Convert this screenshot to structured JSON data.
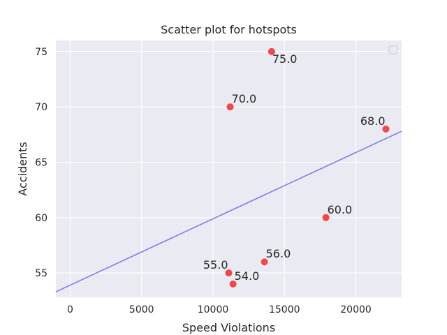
{
  "chart_data": {
    "type": "scatter",
    "title": "Scatter plot for hotspots",
    "xlabel": "Speed Violations",
    "ylabel": "Accidents",
    "xlim": [
      -1000,
      23200
    ],
    "ylim": [
      52.8,
      76
    ],
    "xticks": [
      0,
      5000,
      10000,
      15000,
      20000
    ],
    "yticks": [
      55,
      60,
      65,
      70,
      75
    ],
    "xtick_labels": [
      "0",
      "5000",
      "10000",
      "15000",
      "20000"
    ],
    "ytick_labels": [
      "55",
      "60",
      "65",
      "70",
      "75"
    ],
    "grid": true,
    "legend": "top-right (empty)",
    "point_color": "#f0474a",
    "line_color": "#7878f0",
    "background_color": "#eaeaf2",
    "points": [
      {
        "x": 14100,
        "y": 75,
        "label": "75.0",
        "label_pos": "below-right"
      },
      {
        "x": 11200,
        "y": 70,
        "label": "70.0",
        "label_pos": "above-right"
      },
      {
        "x": 22100,
        "y": 68,
        "label": "68.0",
        "label_pos": "above-left"
      },
      {
        "x": 17900,
        "y": 60,
        "label": "60.0",
        "label_pos": "above-right"
      },
      {
        "x": 13600,
        "y": 56,
        "label": "56.0",
        "label_pos": "above-right"
      },
      {
        "x": 11100,
        "y": 55,
        "label": "55.0",
        "label_pos": "above-left"
      },
      {
        "x": 11400,
        "y": 54,
        "label": "54.0",
        "label_pos": "above-right"
      }
    ],
    "trend_line": {
      "x": [
        -1000,
        23200
      ],
      "y": [
        53.3,
        67.8
      ]
    }
  }
}
